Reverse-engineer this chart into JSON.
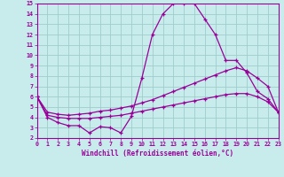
{
  "xlabel": "Windchill (Refroidissement éolien,°C)",
  "xlim": [
    0,
    23
  ],
  "ylim": [
    2,
    15
  ],
  "xticks": [
    0,
    1,
    2,
    3,
    4,
    5,
    6,
    7,
    8,
    9,
    10,
    11,
    12,
    13,
    14,
    15,
    16,
    17,
    18,
    19,
    20,
    21,
    22,
    23
  ],
  "yticks": [
    2,
    3,
    4,
    5,
    6,
    7,
    8,
    9,
    10,
    11,
    12,
    13,
    14,
    15
  ],
  "bg_color": "#c8ecec",
  "grid_color": "#a0cccc",
  "line_color": "#990099",
  "line1_x": [
    0,
    1,
    2,
    3,
    4,
    5,
    6,
    7,
    8,
    9,
    10,
    11,
    12,
    13,
    14,
    15,
    16,
    17,
    18,
    19,
    20,
    21,
    22,
    23
  ],
  "line1_y": [
    6.0,
    4.0,
    3.5,
    3.2,
    3.2,
    2.5,
    3.1,
    3.0,
    2.5,
    4.1,
    7.8,
    12.0,
    14.0,
    15.0,
    15.0,
    15.0,
    13.5,
    12.0,
    9.5,
    9.5,
    8.3,
    6.5,
    5.8,
    4.5
  ],
  "line2_x": [
    0,
    1,
    2,
    3,
    4,
    5,
    6,
    7,
    8,
    9,
    10,
    11,
    12,
    13,
    14,
    15,
    16,
    17,
    18,
    19,
    20,
    21,
    22,
    23
  ],
  "line2_y": [
    6.0,
    4.5,
    4.3,
    4.2,
    4.3,
    4.4,
    4.6,
    4.7,
    4.9,
    5.1,
    5.4,
    5.7,
    6.1,
    6.5,
    6.9,
    7.3,
    7.7,
    8.1,
    8.5,
    8.8,
    8.5,
    7.8,
    7.0,
    4.5
  ],
  "line3_x": [
    0,
    1,
    2,
    3,
    4,
    5,
    6,
    7,
    8,
    9,
    10,
    11,
    12,
    13,
    14,
    15,
    16,
    17,
    18,
    19,
    20,
    21,
    22,
    23
  ],
  "line3_y": [
    6.0,
    4.2,
    4.0,
    3.9,
    3.9,
    3.9,
    4.0,
    4.1,
    4.2,
    4.4,
    4.6,
    4.8,
    5.0,
    5.2,
    5.4,
    5.6,
    5.8,
    6.0,
    6.2,
    6.3,
    6.3,
    6.0,
    5.5,
    4.5
  ]
}
